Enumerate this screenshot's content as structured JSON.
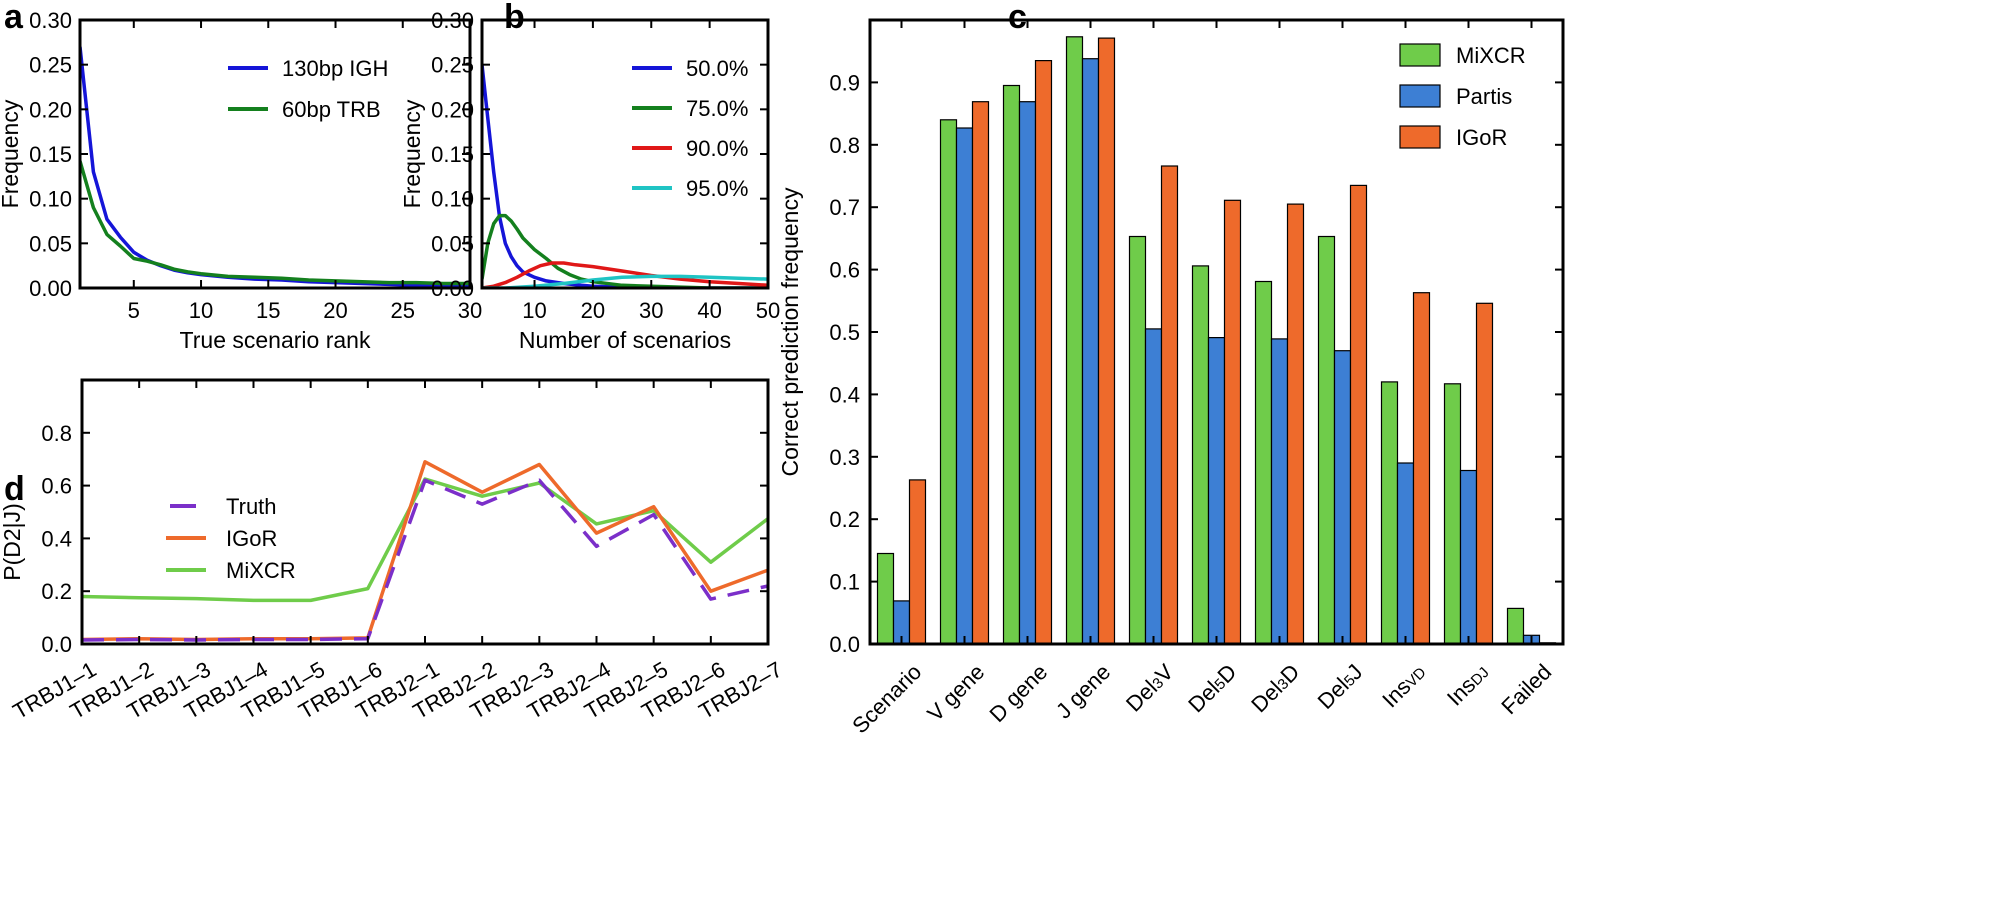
{
  "colors": {
    "blue": "#1515d8",
    "green": "#14801e",
    "red": "#e01818",
    "cyan": "#1fc4c4",
    "mixcr": "#6fcc4a",
    "partis": "#3d7fd4",
    "igor": "#ee6a2b",
    "truth": "#7b2fc9"
  },
  "panels": {
    "a": {
      "letter": "a"
    },
    "b": {
      "letter": "b"
    },
    "c": {
      "letter": "c"
    },
    "d": {
      "letter": "d"
    }
  },
  "chart_data": [
    {
      "id": "a",
      "type": "line",
      "xlabel": "True scenario rank",
      "ylabel": "Frequency",
      "xlim": [
        1,
        30
      ],
      "ylim": [
        0,
        0.3
      ],
      "xticks": [
        5,
        10,
        15,
        20,
        25,
        30
      ],
      "xtick_labels": [
        "5",
        "10",
        "15",
        "20",
        "25",
        "30"
      ],
      "yticks": [
        0,
        0.05,
        0.1,
        0.15,
        0.2,
        0.25,
        0.3
      ],
      "ytick_labels": [
        "0.00",
        "0.05",
        "0.10",
        "0.15",
        "0.20",
        "0.25",
        "0.30"
      ],
      "legend_position": "top-right",
      "series": [
        {
          "name": "130bp IGH",
          "color_key": "blue",
          "x": [
            1,
            2,
            3,
            4,
            5,
            6,
            7,
            8,
            9,
            10,
            12,
            14,
            16,
            18,
            20,
            22,
            24,
            26,
            28,
            30
          ],
          "y": [
            0.27,
            0.13,
            0.077,
            0.057,
            0.04,
            0.031,
            0.025,
            0.02,
            0.017,
            0.015,
            0.012,
            0.01,
            0.009,
            0.007,
            0.006,
            0.005,
            0.004,
            0.003,
            0.003,
            0.002
          ]
        },
        {
          "name": "60bp TRB",
          "color_key": "green",
          "x": [
            1,
            2,
            3,
            4,
            5,
            6,
            7,
            8,
            9,
            10,
            12,
            14,
            16,
            18,
            20,
            22,
            24,
            26,
            28,
            30
          ],
          "y": [
            0.142,
            0.09,
            0.06,
            0.047,
            0.033,
            0.03,
            0.026,
            0.021,
            0.018,
            0.016,
            0.013,
            0.012,
            0.011,
            0.009,
            0.008,
            0.007,
            0.006,
            0.006,
            0.005,
            0.005
          ]
        }
      ]
    },
    {
      "id": "b",
      "type": "line",
      "xlabel": "Number of scenarios",
      "ylabel": "Frequency",
      "xlim": [
        1,
        50
      ],
      "ylim": [
        0,
        0.3
      ],
      "xticks": [
        10,
        20,
        30,
        40,
        50
      ],
      "xtick_labels": [
        "10",
        "20",
        "30",
        "40",
        "50"
      ],
      "yticks": [
        0,
        0.05,
        0.1,
        0.15,
        0.2,
        0.25,
        0.3
      ],
      "ytick_labels": [
        "0.00",
        "0.05",
        "0.10",
        "0.15",
        "0.20",
        "0.25",
        "0.30"
      ],
      "legend_position": "top-right",
      "series": [
        {
          "name": "50.0%",
          "color_key": "blue",
          "x": [
            1,
            2,
            3,
            4,
            5,
            6,
            7,
            8,
            10,
            12,
            15,
            18,
            20,
            25,
            30,
            40,
            50
          ],
          "y": [
            0.25,
            0.19,
            0.13,
            0.08,
            0.05,
            0.035,
            0.025,
            0.018,
            0.012,
            0.008,
            0.005,
            0.003,
            0.002,
            0.001,
            0.0,
            0.0,
            0.0
          ]
        },
        {
          "name": "75.0%",
          "color_key": "green",
          "x": [
            1,
            2,
            3,
            4,
            5,
            6,
            7,
            8,
            10,
            12,
            14,
            16,
            18,
            20,
            25,
            30,
            40,
            50
          ],
          "y": [
            0.01,
            0.05,
            0.072,
            0.081,
            0.081,
            0.075,
            0.066,
            0.056,
            0.043,
            0.033,
            0.022,
            0.015,
            0.01,
            0.007,
            0.003,
            0.002,
            0.0,
            0.0
          ]
        },
        {
          "name": "90.0%",
          "color_key": "red",
          "x": [
            1,
            3,
            5,
            7,
            9,
            11,
            13,
            15,
            17,
            20,
            25,
            30,
            35,
            40,
            45,
            50
          ],
          "y": [
            0.0,
            0.002,
            0.006,
            0.012,
            0.019,
            0.025,
            0.028,
            0.028,
            0.026,
            0.024,
            0.019,
            0.014,
            0.01,
            0.007,
            0.005,
            0.003
          ]
        },
        {
          "name": "95.0%",
          "color_key": "cyan",
          "x": [
            1,
            5,
            10,
            15,
            20,
            25,
            30,
            35,
            40,
            45,
            50
          ],
          "y": [
            0.0,
            0.0,
            0.002,
            0.005,
            0.009,
            0.012,
            0.013,
            0.013,
            0.012,
            0.011,
            0.01
          ]
        }
      ]
    },
    {
      "id": "c",
      "type": "bar",
      "ylabel": "Correct prediction frequency",
      "ylim": [
        0,
        1.0
      ],
      "yticks": [
        0,
        0.1,
        0.2,
        0.3,
        0.4,
        0.5,
        0.6,
        0.7,
        0.8,
        0.9
      ],
      "ytick_labels": [
        "0.0",
        "0.1",
        "0.2",
        "0.3",
        "0.4",
        "0.5",
        "0.6",
        "0.7",
        "0.8",
        "0.9"
      ],
      "categories": [
        {
          "main": "Scenario",
          "sub": ""
        },
        {
          "main": "V gene",
          "sub": ""
        },
        {
          "main": "D gene",
          "sub": ""
        },
        {
          "main": "J gene",
          "sub": ""
        },
        {
          "main": "Del",
          "sub": "3",
          "tail": "V"
        },
        {
          "main": "Del",
          "sub": "5",
          "tail": "D"
        },
        {
          "main": "Del",
          "sub": "3",
          "tail": "D"
        },
        {
          "main": "Del",
          "sub": "5",
          "tail": "J"
        },
        {
          "main": "Ins",
          "sub": "VD",
          "tail": ""
        },
        {
          "main": "Ins",
          "sub": "DJ",
          "tail": ""
        },
        {
          "main": "Failed",
          "sub": ""
        }
      ],
      "legend_position": "top-right",
      "series": [
        {
          "name": "MiXCR",
          "color_key": "mixcr",
          "values": [
            0.145,
            0.84,
            0.895,
            0.973,
            0.653,
            0.606,
            0.581,
            0.653,
            0.42,
            0.417,
            0.057
          ]
        },
        {
          "name": "Partis",
          "color_key": "partis",
          "values": [
            0.069,
            0.827,
            0.869,
            0.938,
            0.505,
            0.491,
            0.489,
            0.47,
            0.29,
            0.278,
            0.014
          ]
        },
        {
          "name": "IGoR",
          "color_key": "igor",
          "values": [
            0.263,
            0.869,
            0.935,
            0.971,
            0.766,
            0.711,
            0.705,
            0.735,
            0.563,
            0.546,
            0.002
          ]
        }
      ]
    },
    {
      "id": "d",
      "type": "line",
      "ylabel": "P(D2|J)",
      "ylim": [
        0,
        1.0
      ],
      "yticks": [
        0,
        0.2,
        0.4,
        0.6,
        0.8
      ],
      "ytick_labels": [
        "0.0",
        "0.2",
        "0.4",
        "0.6",
        "0.8"
      ],
      "categories": [
        "TRBJ1–1",
        "TRBJ1–2",
        "TRBJ1–3",
        "TRBJ1–4",
        "TRBJ1–5",
        "TRBJ1–6",
        "TRBJ2–1",
        "TRBJ2–2",
        "TRBJ2–3",
        "TRBJ2–4",
        "TRBJ2–5",
        "TRBJ2–6",
        "TRBJ2–7"
      ],
      "legend_position": "top-left",
      "series": [
        {
          "name": "Truth",
          "color_key": "truth",
          "dashed": true,
          "values": [
            0.015,
            0.017,
            0.015,
            0.017,
            0.017,
            0.02,
            0.62,
            0.53,
            0.62,
            0.37,
            0.49,
            0.17,
            0.22
          ]
        },
        {
          "name": "IGoR",
          "color_key": "igor",
          "values": [
            0.017,
            0.02,
            0.017,
            0.02,
            0.02,
            0.023,
            0.69,
            0.575,
            0.68,
            0.42,
            0.52,
            0.2,
            0.28
          ]
        },
        {
          "name": "MiXCR",
          "color_key": "mixcr",
          "values": [
            0.18,
            0.175,
            0.172,
            0.165,
            0.165,
            0.21,
            0.625,
            0.56,
            0.61,
            0.455,
            0.505,
            0.31,
            0.475
          ]
        }
      ]
    }
  ]
}
